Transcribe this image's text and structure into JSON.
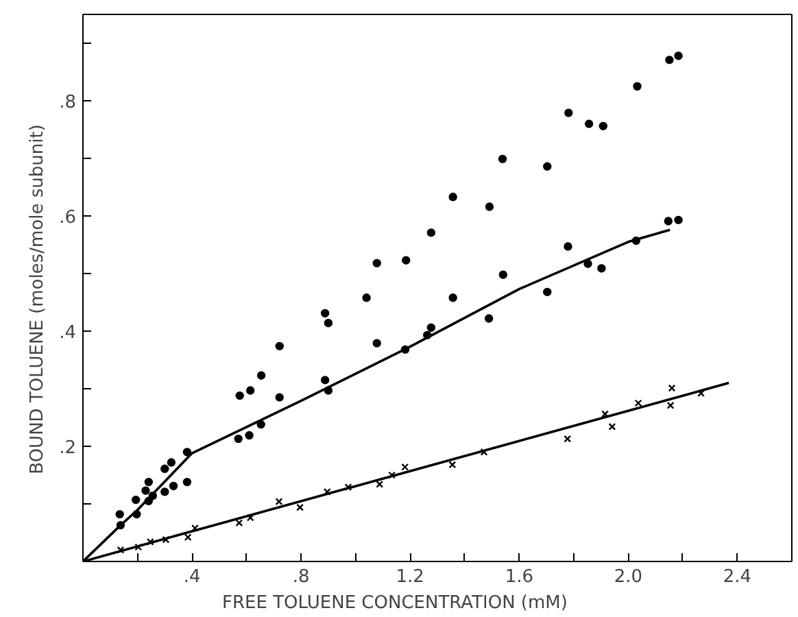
{
  "chart_data": {
    "type": "scatter",
    "xlabel": "FREE    TOLUENE    CONCENTRATION          (mM)",
    "ylabel": "BOUND   TOLUENE   (moles/mole subunit)",
    "xlim": [
      0,
      2.6
    ],
    "ylim": [
      0,
      0.95
    ],
    "xticks": [
      {
        "value": 0.2,
        "label": null
      },
      {
        "value": 0.4,
        "label": ".4"
      },
      {
        "value": 0.6,
        "label": null
      },
      {
        "value": 0.8,
        "label": ".8"
      },
      {
        "value": 1.0,
        "label": null
      },
      1.2,
      {
        "value": 1.4,
        "label": null
      },
      1.6,
      {
        "value": 1.8,
        "label": null
      },
      {
        "value": 2.0,
        "label": "2.0"
      },
      {
        "value": 2.2,
        "label": null
      },
      2.4
    ],
    "yticks": [
      {
        "value": 0.1,
        "label": null
      },
      {
        "value": 0.2,
        "label": ".2"
      },
      {
        "value": 0.3,
        "label": null
      },
      {
        "value": 0.4,
        "label": ".4"
      },
      {
        "value": 0.5,
        "label": null
      },
      {
        "value": 0.6,
        "label": ".6"
      },
      {
        "value": 0.7,
        "label": null
      },
      {
        "value": 0.8,
        "label": ".8"
      },
      {
        "value": 0.9,
        "label": null
      }
    ],
    "grid": false,
    "series": [
      {
        "marker": "circle",
        "color": "#000000",
        "x": [
          0.135,
          0.194,
          0.23,
          0.241,
          0.3,
          0.324,
          0.382,
          0.382,
          0.575,
          0.614,
          0.654,
          0.721,
          0.721,
          0.888,
          0.9,
          1.04,
          1.078,
          1.078,
          1.185,
          1.182,
          1.277,
          1.357,
          1.357,
          1.491,
          1.489,
          1.539,
          1.541,
          1.703,
          1.703,
          1.781,
          1.779,
          1.856,
          1.852,
          1.908,
          1.902,
          2.033,
          2.029,
          2.151,
          2.184,
          2.147,
          2.184,
          0.138,
          0.197,
          0.241,
          0.256,
          0.3,
          0.332,
          0.57,
          0.61,
          0.653,
          0.888,
          0.9,
          1.263,
          1.277
        ],
        "values": [
          0.082,
          0.107,
          0.123,
          0.138,
          0.161,
          0.172,
          0.19,
          0.138,
          0.288,
          0.297,
          0.323,
          0.374,
          0.285,
          0.431,
          0.414,
          0.458,
          0.518,
          0.379,
          0.523,
          0.368,
          0.571,
          0.633,
          0.458,
          0.616,
          0.422,
          0.699,
          0.498,
          0.686,
          0.468,
          0.779,
          0.547,
          0.76,
          0.517,
          0.756,
          0.509,
          0.825,
          0.557,
          0.871,
          0.878,
          0.591,
          0.593,
          0.063,
          0.082,
          0.105,
          0.114,
          0.121,
          0.131,
          0.213,
          0.219,
          0.238,
          0.315,
          0.297,
          0.393,
          0.406
        ]
      },
      {
        "marker": "cross",
        "color": "#000000",
        "x": [
          0.138,
          0.203,
          0.247,
          0.304,
          0.385,
          0.411,
          0.573,
          0.614,
          0.719,
          0.796,
          0.896,
          0.973,
          1.088,
          1.133,
          1.181,
          1.355,
          1.471,
          1.777,
          1.915,
          1.941,
          2.037,
          2.155,
          2.16,
          2.267
        ],
        "values": [
          0.02,
          0.025,
          0.034,
          0.038,
          0.042,
          0.058,
          0.067,
          0.076,
          0.104,
          0.094,
          0.121,
          0.129,
          0.134,
          0.15,
          0.164,
          0.168,
          0.19,
          0.213,
          0.256,
          0.234,
          0.275,
          0.271,
          0.301,
          0.292
        ]
      },
      {
        "type": "line",
        "marker": "none",
        "color": "#000000",
        "x": [
          0,
          0.138,
          0.199,
          0.4,
          0.8,
          1.2,
          1.6,
          2.0,
          2.153
        ],
        "values": [
          0,
          0.063,
          0.089,
          0.188,
          0.279,
          0.373,
          0.473,
          0.555,
          0.576
        ]
      },
      {
        "type": "line",
        "marker": "none",
        "color": "#000000",
        "x": [
          0,
          2.369
        ],
        "values": [
          0,
          0.31
        ]
      }
    ]
  }
}
